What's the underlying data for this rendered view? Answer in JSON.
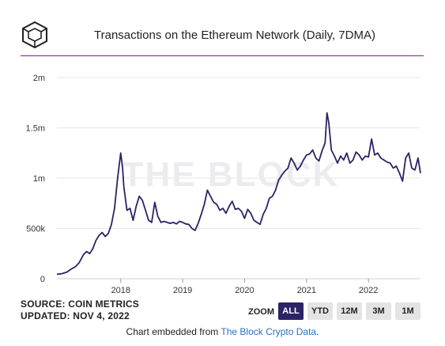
{
  "chart_data": {
    "type": "line",
    "title": "Transactions on the Ethereum Network (Daily, 7DMA)",
    "watermark": "THE BLOCK",
    "y_ticks": [
      {
        "value": 0,
        "label": "0"
      },
      {
        "value": 500000,
        "label": "500k"
      },
      {
        "value": 1000000,
        "label": "1m"
      },
      {
        "value": 1500000,
        "label": "1.5m"
      },
      {
        "value": 2000000,
        "label": "2m"
      }
    ],
    "x_ticks": [
      {
        "value": 2018.0,
        "label": "2018"
      },
      {
        "value": 2019.0,
        "label": "2019"
      },
      {
        "value": 2020.0,
        "label": "2020"
      },
      {
        "value": 2021.0,
        "label": "2021"
      },
      {
        "value": 2022.0,
        "label": "2022"
      }
    ],
    "xlim": [
      2016.97,
      2022.84
    ],
    "ylim": [
      0,
      2000000
    ],
    "grid": true,
    "line_color": "#2b2364",
    "series": [
      {
        "x": [
          2016.97,
          2017.05,
          2017.13,
          2017.2,
          2017.27,
          2017.33,
          2017.4,
          2017.45,
          2017.5,
          2017.55,
          2017.6,
          2017.65,
          2017.7,
          2017.75,
          2017.8,
          2017.85,
          2017.9,
          2017.95,
          2018.0,
          2018.03,
          2018.05,
          2018.1,
          2018.15,
          2018.2,
          2018.25,
          2018.3,
          2018.35,
          2018.4,
          2018.45,
          2018.5,
          2018.55,
          2018.6,
          2018.65,
          2018.7,
          2018.75,
          2018.8,
          2018.85,
          2018.9,
          2018.95,
          2019.0,
          2019.05,
          2019.1,
          2019.15,
          2019.2,
          2019.25,
          2019.3,
          2019.35,
          2019.4,
          2019.45,
          2019.5,
          2019.55,
          2019.6,
          2019.65,
          2019.7,
          2019.75,
          2019.8,
          2019.85,
          2019.9,
          2019.95,
          2020.0,
          2020.05,
          2020.1,
          2020.15,
          2020.2,
          2020.25,
          2020.3,
          2020.35,
          2020.4,
          2020.45,
          2020.5,
          2020.55,
          2020.6,
          2020.65,
          2020.7,
          2020.75,
          2020.8,
          2020.85,
          2020.9,
          2020.95,
          2021.0,
          2021.05,
          2021.1,
          2021.15,
          2021.2,
          2021.25,
          2021.3,
          2021.33,
          2021.36,
          2021.4,
          2021.45,
          2021.5,
          2021.55,
          2021.6,
          2021.65,
          2021.7,
          2021.75,
          2021.8,
          2021.85,
          2021.9,
          2021.95,
          2022.0,
          2022.05,
          2022.1,
          2022.15,
          2022.2,
          2022.25,
          2022.3,
          2022.35,
          2022.4,
          2022.45,
          2022.5,
          2022.55,
          2022.6,
          2022.65,
          2022.7,
          2022.75,
          2022.8,
          2022.84
        ],
        "y": [
          45000,
          50000,
          65000,
          95000,
          120000,
          160000,
          240000,
          270000,
          250000,
          300000,
          380000,
          430000,
          460000,
          420000,
          450000,
          540000,
          700000,
          1000000,
          1250000,
          1100000,
          920000,
          680000,
          700000,
          580000,
          720000,
          820000,
          780000,
          680000,
          580000,
          560000,
          760000,
          620000,
          560000,
          570000,
          560000,
          550000,
          560000,
          545000,
          570000,
          560000,
          545000,
          540000,
          500000,
          480000,
          550000,
          640000,
          740000,
          880000,
          820000,
          760000,
          740000,
          680000,
          700000,
          650000,
          720000,
          770000,
          690000,
          700000,
          670000,
          600000,
          690000,
          650000,
          580000,
          560000,
          540000,
          640000,
          700000,
          800000,
          820000,
          880000,
          980000,
          1030000,
          1070000,
          1100000,
          1200000,
          1150000,
          1080000,
          1120000,
          1180000,
          1230000,
          1240000,
          1280000,
          1200000,
          1170000,
          1270000,
          1350000,
          1650000,
          1550000,
          1280000,
          1220000,
          1150000,
          1220000,
          1180000,
          1250000,
          1150000,
          1180000,
          1260000,
          1230000,
          1180000,
          1220000,
          1210000,
          1390000,
          1230000,
          1250000,
          1200000,
          1180000,
          1160000,
          1150000,
          1100000,
          1120000,
          1050000,
          970000,
          1200000,
          1250000,
          1100000,
          1080000,
          1200000,
          1050000
        ]
      }
    ]
  },
  "source": {
    "line1": "SOURCE: COIN METRICS",
    "line2": "UPDATED: NOV 4, 2022"
  },
  "zoom": {
    "label": "ZOOM",
    "buttons": [
      "ALL",
      "YTD",
      "12M",
      "3M",
      "1M"
    ],
    "active": "ALL"
  },
  "embed": {
    "prefix": "Chart embedded from ",
    "link_text": "The Block Crypto Data",
    "suffix": "."
  },
  "colors": {
    "accent_rule": "#7b1f8a",
    "line": "#2b2364",
    "active_button": "#2b2364",
    "link": "#2b6fc2"
  }
}
